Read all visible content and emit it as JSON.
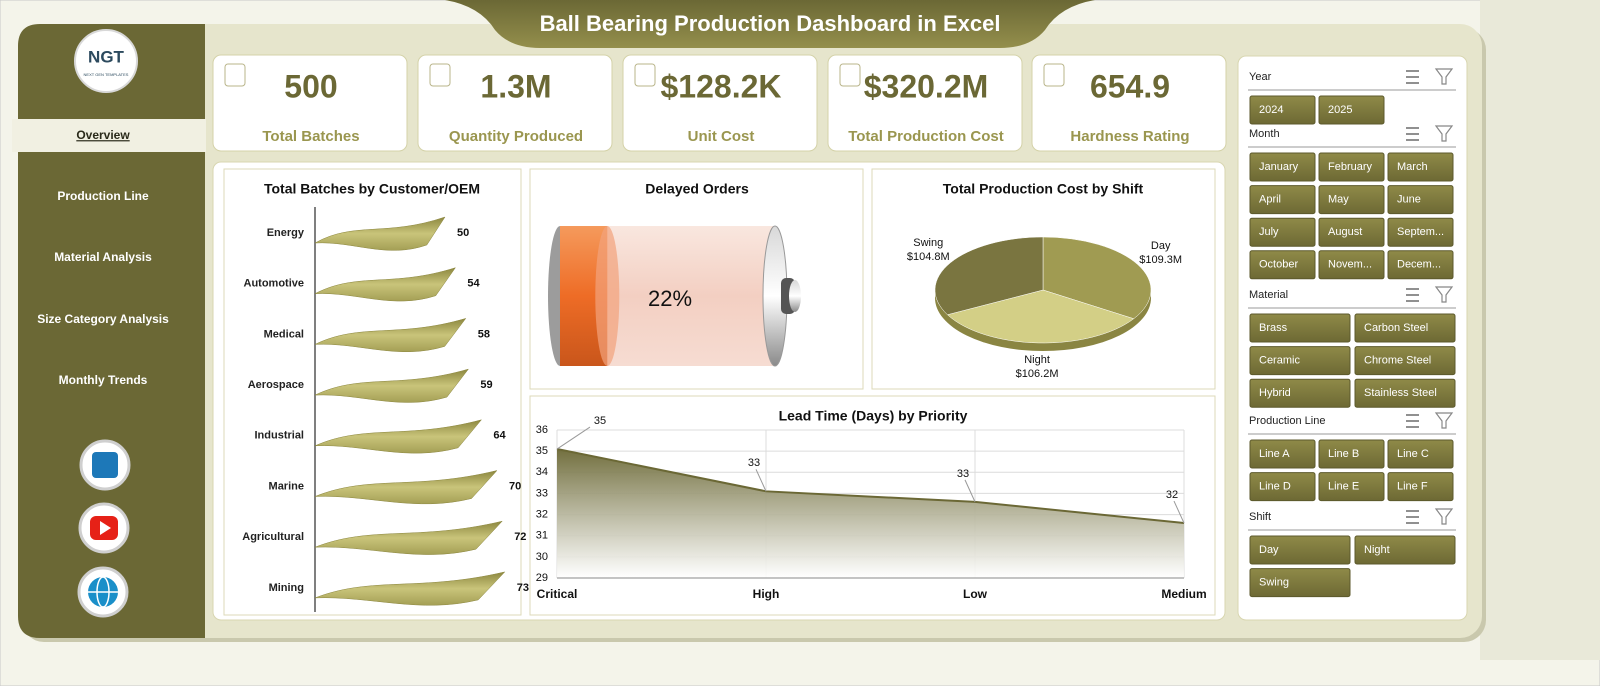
{
  "header": {
    "title": "Ball Bearing Production Dashboard in Excel"
  },
  "logo": {
    "text": "NGT",
    "subtitle": "NEXT GEN TEMPLATES"
  },
  "nav": [
    "Overview",
    "Production Line",
    "Material Analysis",
    "Size Category Analysis",
    "Monthly Trends"
  ],
  "kpis": [
    {
      "value": "500",
      "label": "Total Batches"
    },
    {
      "value": "1.3M",
      "label": "Quantity Produced"
    },
    {
      "value": "$128.2K",
      "label": "Unit Cost"
    },
    {
      "value": "$320.2M",
      "label": "Total Production Cost"
    },
    {
      "value": "654.9",
      "label": "Hardness Rating"
    }
  ],
  "chart_data": [
    {
      "type": "bar",
      "title": "Total Batches by Customer/OEM",
      "categories": [
        "Energy",
        "Automotive",
        "Medical",
        "Aerospace",
        "Industrial",
        "Marine",
        "Agricultural",
        "Mining"
      ],
      "values": [
        50,
        54,
        58,
        59,
        64,
        70,
        72,
        73
      ],
      "color": "#b3ae5f"
    },
    {
      "type": "battery",
      "title": "Delayed Orders",
      "values": [
        22
      ],
      "value_labels": [
        "22%"
      ],
      "color": "#f07a38"
    },
    {
      "type": "pie",
      "title": "Total Production Cost by Shift",
      "categories": [
        "Day",
        "Night",
        "Swing"
      ],
      "values": [
        109.3,
        106.2,
        104.8
      ],
      "value_labels": [
        "$109.3M",
        "$106.2M",
        "$104.8M"
      ],
      "colors": [
        "#a09b52",
        "#d3cf86",
        "#7a7540"
      ]
    },
    {
      "type": "area",
      "title": "Lead Time (Days) by Priority",
      "categories": [
        "Critical",
        "High",
        "Low",
        "Medium"
      ],
      "values": [
        35.1,
        33.1,
        32.6,
        31.6
      ],
      "value_labels": [
        "35",
        "33",
        "33",
        "32"
      ],
      "ylim": [
        29,
        36
      ],
      "yticks": [
        29,
        30,
        31,
        32,
        33,
        34,
        35,
        36
      ],
      "grid": true,
      "color": "#6b6835"
    }
  ],
  "slicers": [
    {
      "title": "Year",
      "items": [
        "2024",
        "2025"
      ]
    },
    {
      "title": "Month",
      "items": [
        "January",
        "February",
        "March",
        "April",
        "May",
        "June",
        "July",
        "August",
        "Septem...",
        "October",
        "Novem...",
        "Decem..."
      ]
    },
    {
      "title": "Material",
      "items": [
        "Brass",
        "Carbon Steel",
        "Ceramic",
        "Chrome Steel",
        "Hybrid",
        "Stainless Steel"
      ]
    },
    {
      "title": "Production Line",
      "items": [
        "Line A",
        "Line B",
        "Line C",
        "Line D",
        "Line E",
        "Line F"
      ]
    },
    {
      "title": "Shift",
      "items": [
        "Day",
        "Night",
        "Swing"
      ]
    }
  ]
}
